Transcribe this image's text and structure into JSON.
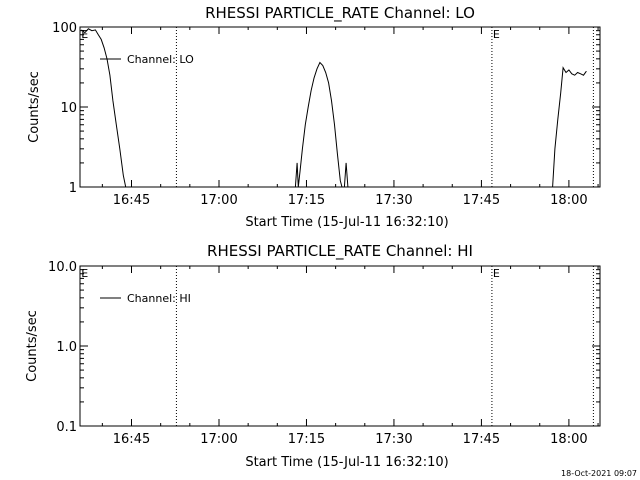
{
  "footer": {
    "stamp": "18-Oct-2021 09:07"
  },
  "chart_data": [
    {
      "type": "line",
      "title": "RHESSI PARTICLE_RATE Channel: LO",
      "xlabel": "Start Time (15-Jul-11 16:32:10)",
      "ylabel": "Counts/sec",
      "yscale": "log",
      "ylim": [
        1,
        100
      ],
      "yticks": [
        1,
        10,
        100
      ],
      "ytick_labels": [
        "1",
        "10",
        "100"
      ],
      "xlim_min": [
        36.167,
        125.333
      ],
      "xticks_min": [
        45,
        60,
        75,
        90,
        105,
        120
      ],
      "xtick_labels": [
        "16:45",
        "17:00",
        "17:15",
        "17:30",
        "17:45",
        "18:00"
      ],
      "legend": {
        "label": "Channel: LO",
        "position": "top-left"
      },
      "event_markers": [
        {
          "label": "E",
          "t_min": 36.2,
          "style": "none"
        },
        {
          "label": "",
          "t_min": 52.7,
          "style": "dotted"
        },
        {
          "label": "E",
          "t_min": 106.8,
          "style": "dotted"
        },
        {
          "label": "",
          "t_min": 124.2,
          "style": "dotted"
        }
      ],
      "series": [
        {
          "name": "Channel: LO",
          "segments": [
            [
              [
                36.4,
                92
              ],
              [
                37.0,
                85
              ],
              [
                37.6,
                95
              ],
              [
                38.2,
                90
              ],
              [
                38.8,
                92
              ],
              [
                39.3,
                80
              ],
              [
                39.8,
                70
              ],
              [
                40.3,
                55
              ],
              [
                40.8,
                40
              ],
              [
                41.3,
                25
              ],
              [
                41.8,
                12
              ],
              [
                42.4,
                6
              ],
              [
                43.0,
                3
              ],
              [
                43.6,
                1.4
              ],
              [
                44.0,
                1
              ]
            ],
            [
              [
                73.1,
                1
              ],
              [
                73.4,
                2
              ],
              [
                73.6,
                1
              ],
              [
                73.9,
                1.6
              ],
              [
                74.3,
                3
              ],
              [
                74.8,
                6
              ],
              [
                75.3,
                10
              ],
              [
                75.8,
                16
              ],
              [
                76.3,
                23
              ],
              [
                76.8,
                30
              ],
              [
                77.3,
                36
              ],
              [
                77.8,
                33
              ],
              [
                78.3,
                27
              ],
              [
                78.8,
                20
              ],
              [
                79.3,
                12
              ],
              [
                79.8,
                6
              ],
              [
                80.3,
                2.6
              ],
              [
                80.8,
                1.2
              ],
              [
                81.1,
                1
              ]
            ],
            [
              [
                81.5,
                1
              ],
              [
                81.8,
                2
              ],
              [
                82.1,
                1
              ]
            ],
            [
              [
                117.2,
                1
              ],
              [
                117.6,
                3
              ],
              [
                118.1,
                7
              ],
              [
                118.6,
                15
              ],
              [
                119.0,
                31
              ],
              [
                119.5,
                27
              ],
              [
                120.0,
                29
              ],
              [
                120.5,
                26
              ],
              [
                121.0,
                25
              ],
              [
                121.5,
                27
              ],
              [
                122.0,
                26
              ],
              [
                122.5,
                25
              ],
              [
                123.0,
                28
              ]
            ]
          ]
        }
      ]
    },
    {
      "type": "line",
      "title": "RHESSI PARTICLE_RATE Channel: HI",
      "xlabel": "Start Time (15-Jul-11 16:32:10)",
      "ylabel": "Counts/sec",
      "yscale": "log",
      "ylim": [
        0.1,
        10
      ],
      "yticks": [
        0.1,
        1,
        10
      ],
      "ytick_labels": [
        "0.1",
        "1.0",
        "10.0"
      ],
      "xlim_min": [
        36.167,
        125.333
      ],
      "xticks_min": [
        45,
        60,
        75,
        90,
        105,
        120
      ],
      "xtick_labels": [
        "16:45",
        "17:00",
        "17:15",
        "17:30",
        "17:45",
        "18:00"
      ],
      "legend": {
        "label": "Channel: HI",
        "position": "top-left"
      },
      "event_markers": [
        {
          "label": "E",
          "t_min": 36.2,
          "style": "none"
        },
        {
          "label": "",
          "t_min": 52.7,
          "style": "dotted"
        },
        {
          "label": "E",
          "t_min": 106.8,
          "style": "dotted"
        },
        {
          "label": "",
          "t_min": 124.2,
          "style": "dotted"
        }
      ],
      "series": [
        {
          "name": "Channel: HI",
          "segments": []
        }
      ]
    }
  ]
}
